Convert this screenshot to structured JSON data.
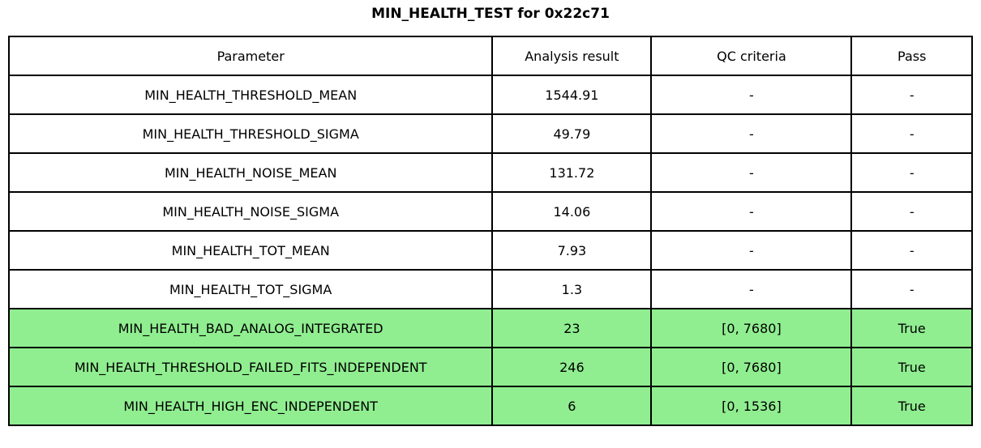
{
  "title": "MIN_HEALTH_TEST for 0x22c71",
  "chart_data": {
    "type": "table",
    "title": "MIN_HEALTH_TEST for 0x22c71",
    "columns": [
      "Parameter",
      "Analysis result",
      "QC criteria",
      "Pass"
    ],
    "rows": [
      [
        "MIN_HEALTH_THRESHOLD_MEAN",
        "1544.91",
        "-",
        "-"
      ],
      [
        "MIN_HEALTH_THRESHOLD_SIGMA",
        "49.79",
        "-",
        "-"
      ],
      [
        "MIN_HEALTH_NOISE_MEAN",
        "131.72",
        "-",
        "-"
      ],
      [
        "MIN_HEALTH_NOISE_SIGMA",
        "14.06",
        "-",
        "-"
      ],
      [
        "MIN_HEALTH_TOT_MEAN",
        "7.93",
        "-",
        "-"
      ],
      [
        "MIN_HEALTH_TOT_SIGMA",
        "1.3",
        "-",
        "-"
      ],
      [
        "MIN_HEALTH_BAD_ANALOG_INTEGRATED",
        "23",
        "[0, 7680]",
        "True"
      ],
      [
        "MIN_HEALTH_THRESHOLD_FAILED_FITS_INDEPENDENT",
        "246",
        "[0, 7680]",
        "True"
      ],
      [
        "MIN_HEALTH_HIGH_ENC_INDEPENDENT",
        "6",
        "[0, 1536]",
        "True"
      ]
    ],
    "highlighted_rows": [
      6,
      7,
      8
    ],
    "legend_position": "none",
    "grid": true
  },
  "colors": {
    "pass_row_bg": "#90EE90",
    "border": "#000000",
    "text": "#000000",
    "background": "#ffffff"
  }
}
